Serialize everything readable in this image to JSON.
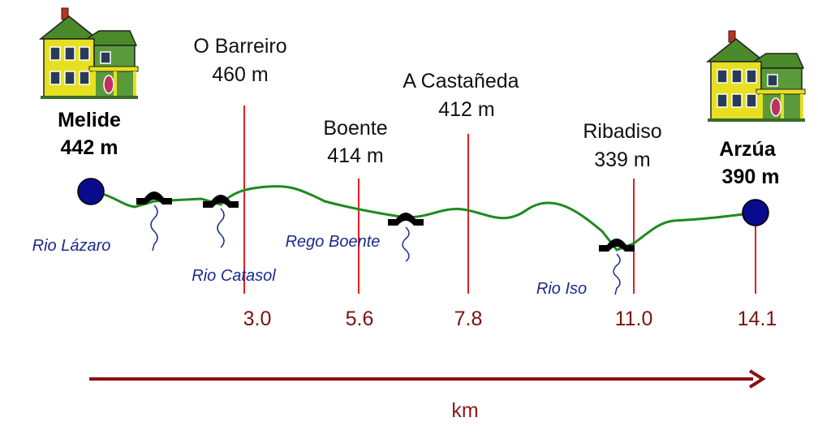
{
  "start": {
    "name": "Melide",
    "elevation": "442 m",
    "icon": "house-icon"
  },
  "end": {
    "name": "Arzúa",
    "elevation": "390 m",
    "icon": "house-icon"
  },
  "waypoints": [
    {
      "name": "O Barreiro",
      "elevation": "460 m",
      "km": "3.0"
    },
    {
      "name": "Boente",
      "elevation": "414 m",
      "km": "5.6"
    },
    {
      "name": "A Castañeda",
      "elevation": "412 m",
      "km": "7.8"
    },
    {
      "name": "Ribadiso",
      "elevation": "339 m",
      "km": "11.0"
    }
  ],
  "end_km": "14.1",
  "rivers": [
    {
      "name": "Rio Lázaro",
      "icon": "bridge-icon"
    },
    {
      "name": "Rio Catasol",
      "icon": "bridge-icon"
    },
    {
      "name": "Rego Boente",
      "icon": "bridge-icon"
    },
    {
      "name": "Rio Iso",
      "icon": "bridge-icon"
    }
  ],
  "axis": {
    "unit_label": "km"
  },
  "colors": {
    "route": "#1e8a1e",
    "markers": "#e02020",
    "km_labels": "#7a1212",
    "arrow": "#8b1010",
    "endpoints": "#0a0a8c",
    "rivers": "#1a2a8a",
    "bridge": "#000000",
    "house_body": "#e6e020",
    "house_roof": "#4a8a2a"
  }
}
